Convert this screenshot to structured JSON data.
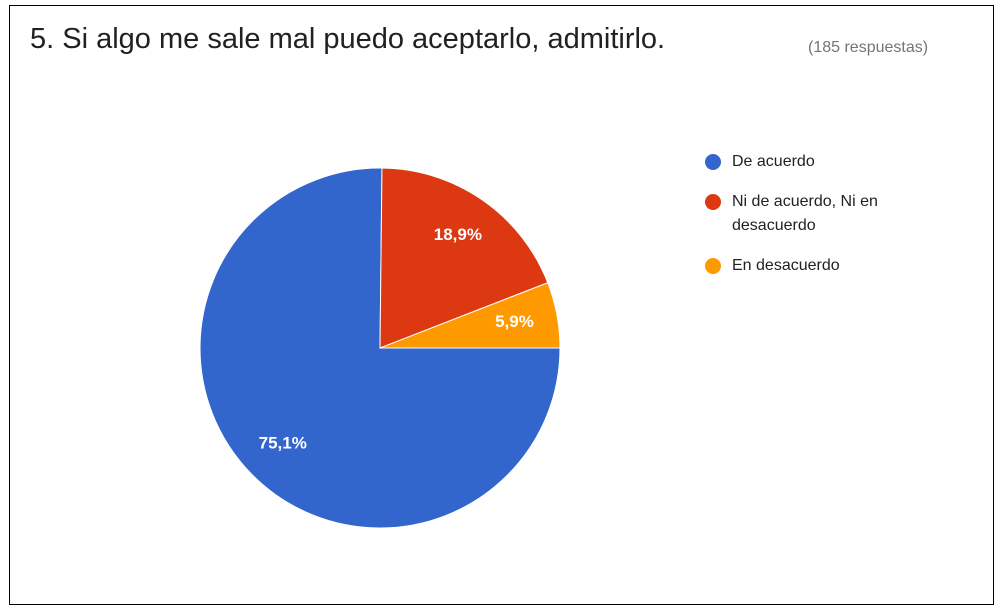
{
  "chart_data": {
    "type": "pie",
    "title": "5. Si algo me sale mal puedo aceptarlo, admitirlo.",
    "subtitle": "(185 respuestas)",
    "categories": [
      "De acuerdo",
      "Ni de acuerdo, Ni en desacuerdo",
      "En desacuerdo"
    ],
    "values": [
      75.1,
      18.9,
      5.9
    ],
    "value_labels": [
      "75,1%",
      "18,9%",
      "5,9%"
    ],
    "colors": [
      "#3366cc",
      "#dc3912",
      "#ff9900"
    ],
    "legend": "right"
  }
}
